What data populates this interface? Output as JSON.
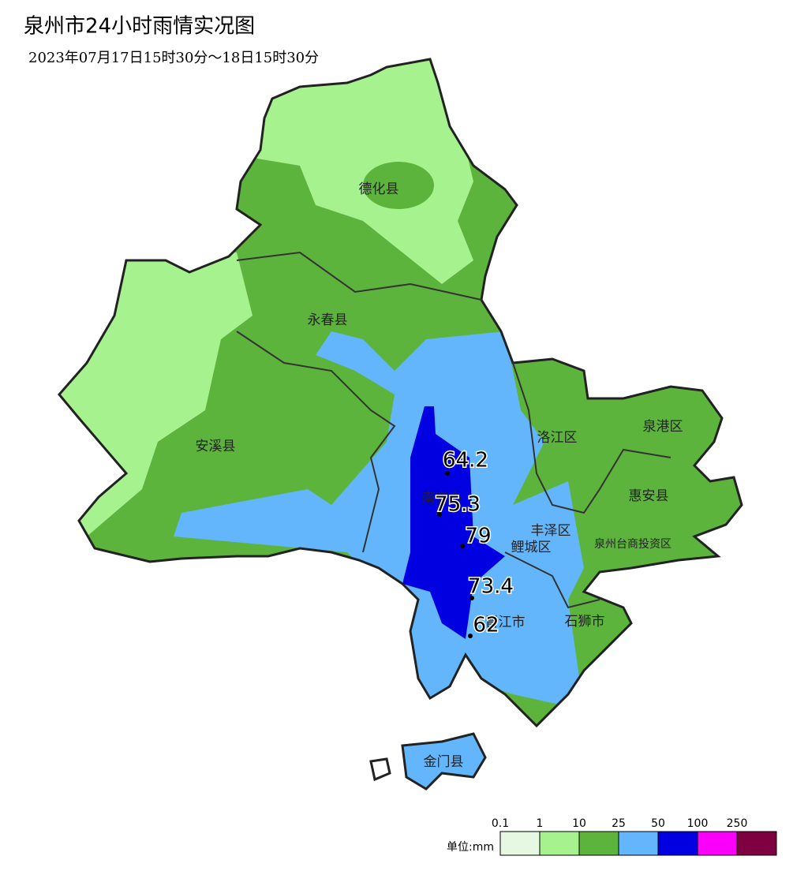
{
  "header": {
    "title": "泉州市24小时雨情实况图",
    "subtitle": "2023年07月17日15时30分～18日15时30分"
  },
  "regions": [
    {
      "label": "德化县"
    },
    {
      "label": "永春县"
    },
    {
      "label": "安溪县"
    },
    {
      "label": "南安市"
    },
    {
      "label": "洛江区"
    },
    {
      "label": "泉港区"
    },
    {
      "label": "惠安县"
    },
    {
      "label": "丰泽区"
    },
    {
      "label": "鲤城区"
    },
    {
      "label": "泉州台商投资区"
    },
    {
      "label": "晋江市"
    },
    {
      "label": "石狮市"
    },
    {
      "label": "金门县"
    }
  ],
  "stations": [
    {
      "value": 64.2
    },
    {
      "value": 75.3
    },
    {
      "value": 79
    },
    {
      "value": 73.4
    },
    {
      "value": 62
    }
  ],
  "legend": {
    "unit": "单位:mm",
    "thresholds": [
      0.1,
      1,
      10,
      25,
      50,
      100,
      250
    ],
    "colors": [
      "#e6f8e2",
      "#a6f28f",
      "#5db43c",
      "#63b6fb",
      "#0000e1",
      "#fa00fa",
      "#7f0040"
    ]
  }
}
